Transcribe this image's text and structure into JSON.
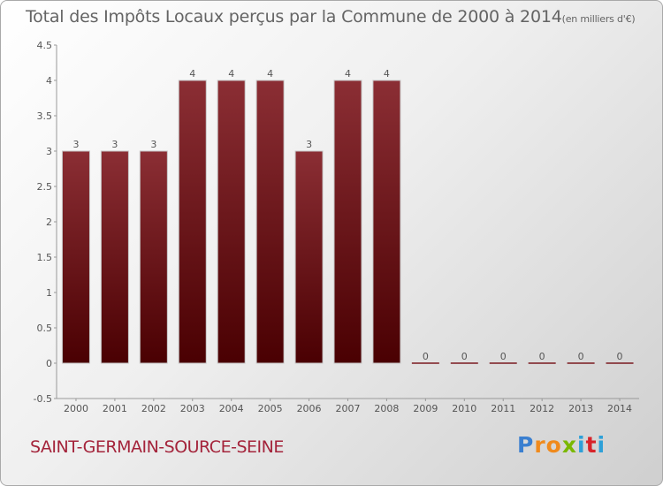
{
  "title": {
    "main": "Total des Impôts Locaux perçus par la Commune de 2000 à 2014",
    "unit": "(en milliers d'€)"
  },
  "commune": "SAINT-GERMAIN-SOURCE-SEINE",
  "logo": {
    "letters": [
      "P",
      "r",
      "o",
      "x",
      "i",
      "t",
      "i"
    ],
    "colors": [
      "#3a7fd0",
      "#f08a1c",
      "#f08a1c",
      "#7ab800",
      "#2ea0d8",
      "#d8232a",
      "#2ea0d8"
    ]
  },
  "colors": {
    "bar_top": "#8b2e34",
    "bar_bottom": "#4a0002",
    "text": "#555555",
    "commune": "#a4243b"
  },
  "chart_data": {
    "type": "bar",
    "categories": [
      "2000",
      "2001",
      "2002",
      "2003",
      "2004",
      "2005",
      "2006",
      "2007",
      "2008",
      "2009",
      "2010",
      "2011",
      "2012",
      "2013",
      "2014"
    ],
    "values": [
      3,
      3,
      3,
      4,
      4,
      4,
      3,
      4,
      4,
      0,
      0,
      0,
      0,
      0,
      0
    ],
    "value_labels": [
      "3",
      "3",
      "3",
      "4",
      "4",
      "4",
      "3",
      "4",
      "4",
      "0",
      "0",
      "0",
      "0",
      "0",
      "0"
    ],
    "yticks": [
      {
        "value": -0.5,
        "label": "-0.5"
      },
      {
        "value": 0,
        "label": "0"
      },
      {
        "value": 0.5,
        "label": "0.5"
      },
      {
        "value": 1,
        "label": "1"
      },
      {
        "value": 1.5,
        "label": "1.5"
      },
      {
        "value": 2,
        "label": "2"
      },
      {
        "value": 2.5,
        "label": "2.5"
      },
      {
        "value": 3,
        "label": "3"
      },
      {
        "value": 3.5,
        "label": "3.5"
      },
      {
        "value": 4,
        "label": "4"
      },
      {
        "value": 4.5,
        "label": "4.5"
      }
    ],
    "ylim": [
      -0.5,
      4.5
    ],
    "title": "Total des Impôts Locaux perçus par la Commune de 2000 à 2014",
    "xlabel": "",
    "ylabel": "en milliers d'€",
    "grid": false
  }
}
